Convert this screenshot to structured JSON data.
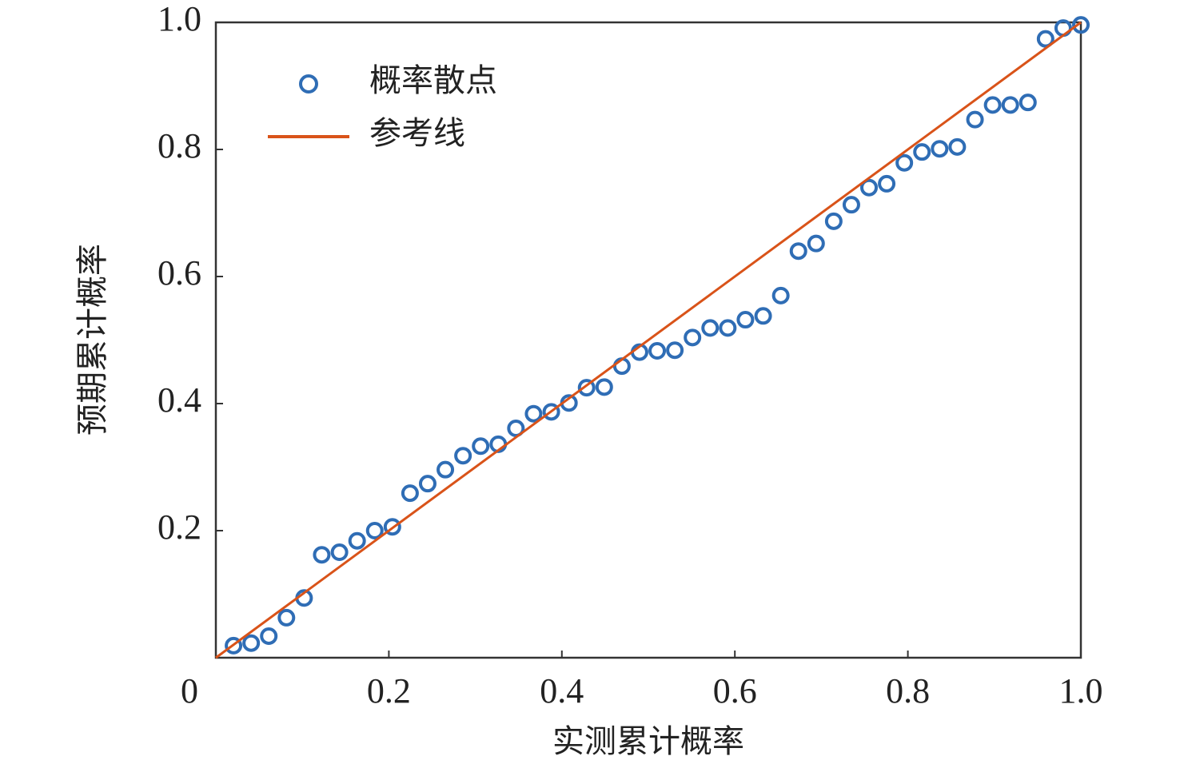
{
  "chart_data": {
    "type": "scatter",
    "xlabel": "实测累计概率",
    "ylabel": "预期累计概率",
    "xlim": [
      0,
      1
    ],
    "ylim": [
      0,
      1
    ],
    "xticks": [
      0,
      0.2,
      0.4,
      0.6,
      0.8,
      {
        "value": 1,
        "label": "1.0"
      }
    ],
    "yticks": [
      0.2,
      0.4,
      0.6,
      0.8,
      {
        "value": 1,
        "label": "1.0"
      }
    ],
    "legend": "upper left",
    "series": [
      {
        "name": "概率散点",
        "color": "#2f6db5",
        "type": "scatter",
        "x": [
          0.0204,
          0.0408,
          0.0612,
          0.0816,
          0.102,
          0.1224,
          0.1429,
          0.1633,
          0.1837,
          0.2041,
          0.2245,
          0.2449,
          0.2653,
          0.2857,
          0.3061,
          0.3265,
          0.3469,
          0.3673,
          0.3878,
          0.4082,
          0.4286,
          0.449,
          0.4694,
          0.4898,
          0.5102,
          0.5306,
          0.551,
          0.5714,
          0.5918,
          0.6122,
          0.6327,
          0.6531,
          0.6735,
          0.6939,
          0.7143,
          0.7347,
          0.7551,
          0.7755,
          0.7959,
          0.8163,
          0.8367,
          0.8571,
          0.8776,
          0.898,
          0.9184,
          0.9388,
          0.9592,
          0.9796,
          1
        ],
        "values": [
          0.019,
          0.023,
          0.034,
          0.063,
          0.094,
          0.162,
          0.166,
          0.184,
          0.2,
          0.206,
          0.259,
          0.274,
          0.296,
          0.318,
          0.333,
          0.336,
          0.361,
          0.384,
          0.387,
          0.401,
          0.425,
          0.426,
          0.459,
          0.481,
          0.483,
          0.484,
          0.504,
          0.519,
          0.519,
          0.532,
          0.538,
          0.57,
          0.64,
          0.652,
          0.687,
          0.713,
          0.74,
          0.746,
          0.779,
          0.796,
          0.801,
          0.804,
          0.847,
          0.87,
          0.87,
          0.874,
          0.974,
          0.991,
          0.996
        ]
      },
      {
        "name": "参考线",
        "color": "#d95319",
        "type": "line",
        "x": [
          0,
          1
        ],
        "values": [
          0,
          1
        ]
      }
    ]
  }
}
